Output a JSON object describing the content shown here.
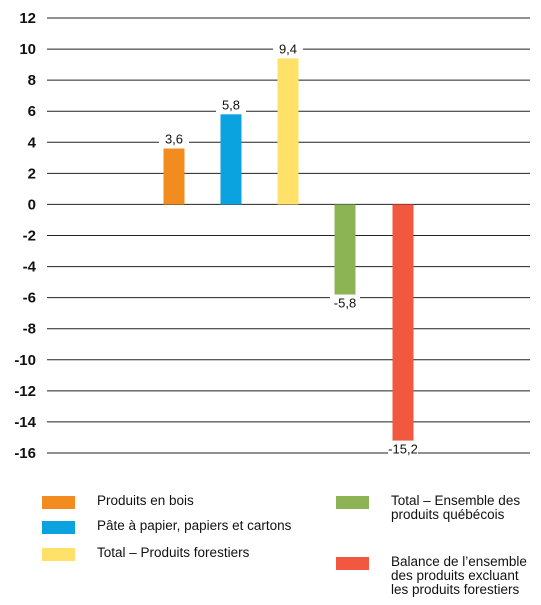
{
  "chart_data": {
    "type": "bar",
    "categories": [
      "Produits en bois",
      "Pâte à papier, papiers et cartons",
      "Total – Produits forestiers",
      "Total – Ensemble des\nproduits québécois",
      "Balance de l’ensemble\ndes produits excluant\nles produits forestiers"
    ],
    "values": [
      3.6,
      5.8,
      9.4,
      -5.8,
      -15.2
    ],
    "value_labels": [
      "3,6",
      "5,8",
      "9,4",
      "-5,8",
      "-15,2"
    ],
    "colors": [
      "#F28C1E",
      "#0AA3E0",
      "#FFE16A",
      "#8CB454",
      "#F2573F"
    ],
    "ylim": [
      -16,
      12
    ],
    "yticks": [
      12,
      10,
      8,
      6,
      4,
      2,
      0,
      -2,
      -4,
      -6,
      -8,
      -10,
      -12,
      -14,
      -16
    ],
    "ytick_labels": [
      "12",
      "10",
      "8",
      "6",
      "4",
      "2",
      "0",
      "-2",
      "-4",
      "-6",
      "-8",
      "-10",
      "-12",
      "-14",
      "-16"
    ],
    "grid": true,
    "legend_position": "bottom"
  }
}
